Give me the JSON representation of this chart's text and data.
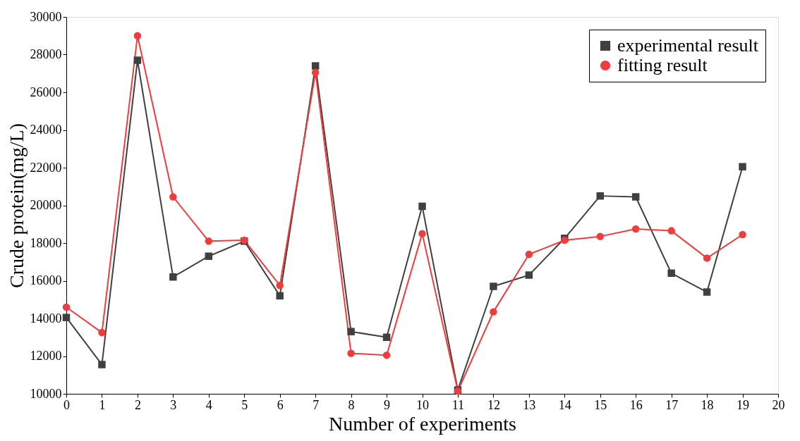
{
  "chart_data": {
    "type": "line",
    "xlabel": "Number of experiments",
    "ylabel": "Crude protein(mg/L)",
    "x": [
      0,
      1,
      2,
      3,
      4,
      5,
      6,
      7,
      8,
      9,
      10,
      11,
      12,
      13,
      14,
      15,
      16,
      17,
      18,
      19
    ],
    "series": [
      {
        "name": "experimental result",
        "color": "#404040",
        "marker": "square",
        "values": [
          14050,
          11550,
          27700,
          16200,
          17300,
          18100,
          15200,
          27400,
          13300,
          13000,
          19950,
          10200,
          15700,
          16300,
          18250,
          20500,
          20450,
          16400,
          15400,
          22050
        ]
      },
      {
        "name": "fitting result",
        "color": "#f03c3c",
        "marker": "circle",
        "values": [
          14600,
          13250,
          29000,
          20450,
          18100,
          18150,
          15750,
          27050,
          12150,
          12050,
          18500,
          10150,
          14350,
          17400,
          18150,
          18350,
          18750,
          18650,
          17200,
          18450
        ]
      }
    ],
    "xlim": [
      0,
      20
    ],
    "xticks": [
      0,
      1,
      2,
      3,
      4,
      5,
      6,
      7,
      8,
      9,
      10,
      11,
      12,
      13,
      14,
      15,
      16,
      17,
      18,
      19,
      20
    ],
    "ylim": [
      10000,
      30000
    ],
    "yticks": [
      10000,
      12000,
      14000,
      16000,
      18000,
      20000,
      22000,
      24000,
      26000,
      28000,
      30000
    ],
    "grid": false,
    "legend": "top right",
    "line_style": "solid"
  }
}
